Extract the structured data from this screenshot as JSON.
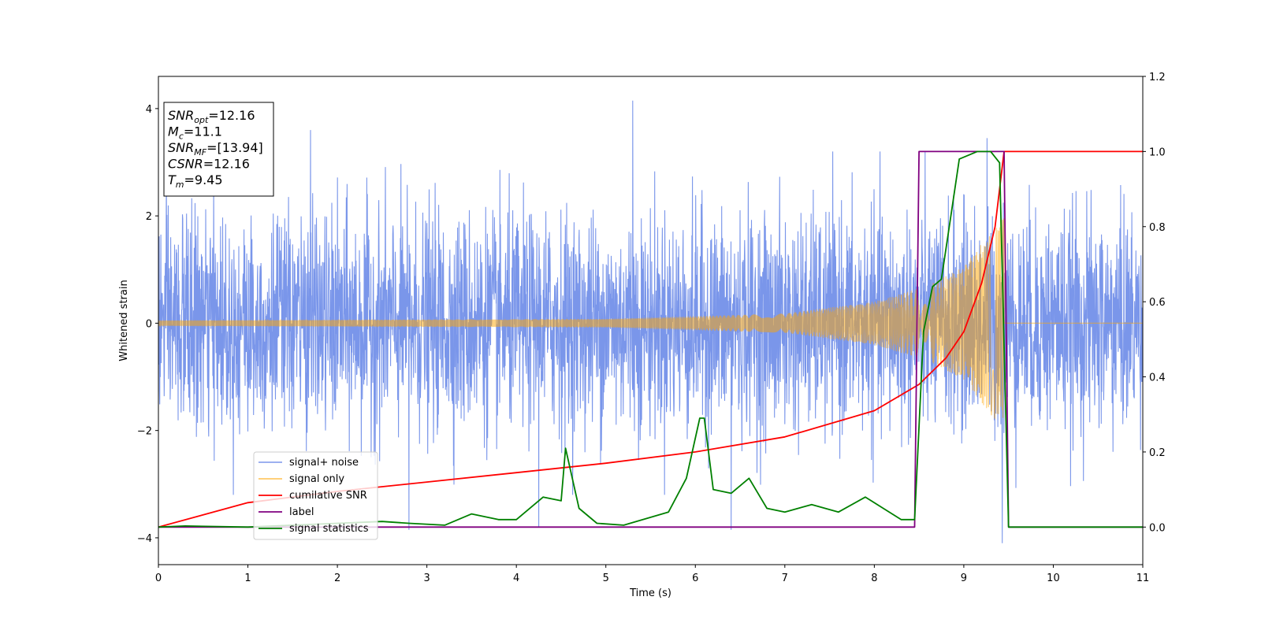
{
  "chart_data": {
    "type": "line",
    "xlabel": "Time (s)",
    "ylabel": "Whitened strain",
    "xlim": [
      0,
      11
    ],
    "ylim_left": [
      -4.5,
      4.6
    ],
    "ylim_right": [
      -0.1,
      1.2
    ],
    "x_ticks": [
      "0",
      "1",
      "2",
      "3",
      "4",
      "5",
      "6",
      "7",
      "8",
      "9",
      "10",
      "11"
    ],
    "y_ticks_left": [
      "4",
      "2",
      "0",
      "−2",
      "−4"
    ],
    "y_ticks_right": [
      "1.2",
      "1.0",
      "0.8",
      "0.6",
      "0.4",
      "0.2",
      "0.0"
    ],
    "annotation": {
      "lines": [
        {
          "base": "SNR",
          "sub": "opt",
          "value": "=12.16"
        },
        {
          "base": "M",
          "sub": "c",
          "value": "=11.1"
        },
        {
          "base": "SNR",
          "sub": "MF",
          "value": "=[13.94]"
        },
        {
          "base": "CSNR",
          "sub": "",
          "value": "=12.16"
        },
        {
          "base": "T",
          "sub": "m",
          "value": "=9.45"
        }
      ]
    },
    "legend": {
      "position": "lower-left",
      "entries": [
        {
          "label": "signal+ noise",
          "color": "#4169e1"
        },
        {
          "label": "signal only",
          "color": "#ffa500"
        },
        {
          "label": "cumilative SNR",
          "color": "#ff0000"
        },
        {
          "label": "label",
          "color": "#800080"
        },
        {
          "label": "signal statistics",
          "color": "#008000"
        }
      ]
    },
    "series": [
      {
        "name": "signal+ noise",
        "axis": "left",
        "color": "#4169e1",
        "opacity": 0.7,
        "kind": "noise",
        "noise_sigma": 1.0,
        "noise_extremes": [
          4.2,
          -4.1
        ],
        "spikes": [
          [
            5.3,
            4.15
          ],
          [
            9.43,
            -4.1
          ],
          [
            1.7,
            3.6
          ],
          [
            9.26,
            3.45
          ],
          [
            2.8,
            -3.85
          ],
          [
            6.4,
            -3.85
          ],
          [
            4.25,
            -3.8
          ]
        ]
      },
      {
        "name": "signal only",
        "axis": "left",
        "color": "#ffa500",
        "opacity": 0.5,
        "kind": "chirp",
        "merger_time": 9.45,
        "envelope": [
          [
            0,
            0.05
          ],
          [
            5,
            0.08
          ],
          [
            7,
            0.18
          ],
          [
            8,
            0.4
          ],
          [
            8.6,
            0.7
          ],
          [
            9.0,
            1.05
          ],
          [
            9.3,
            1.7
          ],
          [
            9.45,
            2.0
          ]
        ]
      },
      {
        "name": "cumilative SNR",
        "axis": "right",
        "color": "#ff0000",
        "x": [
          0,
          1,
          2,
          3,
          4,
          5,
          6,
          7,
          8,
          8.5,
          8.8,
          9.0,
          9.2,
          9.35,
          9.45,
          11
        ],
        "y": [
          0.0,
          0.065,
          0.095,
          0.12,
          0.145,
          0.17,
          0.2,
          0.24,
          0.31,
          0.38,
          0.45,
          0.52,
          0.65,
          0.8,
          1.0,
          1.0
        ]
      },
      {
        "name": "label",
        "axis": "right",
        "color": "#800080",
        "x": [
          0,
          8.45,
          8.5,
          9.45,
          9.5,
          11
        ],
        "y": [
          0,
          0,
          1,
          1,
          0,
          0
        ]
      },
      {
        "name": "signal statistics",
        "axis": "right",
        "color": "#008000",
        "x": [
          0,
          0.3,
          1.0,
          2.0,
          2.5,
          2.8,
          3.2,
          3.5,
          3.8,
          4.0,
          4.2,
          4.3,
          4.5,
          4.55,
          4.7,
          4.9,
          5.2,
          5.7,
          5.9,
          6.05,
          6.1,
          6.2,
          6.4,
          6.6,
          6.8,
          7.0,
          7.3,
          7.6,
          7.9,
          8.1,
          8.3,
          8.45,
          8.55,
          8.65,
          8.75,
          8.85,
          8.95,
          9.05,
          9.15,
          9.3,
          9.4,
          9.5,
          10.0,
          11.0
        ],
        "y": [
          0.0,
          0.003,
          0.0,
          0.01,
          0.015,
          0.01,
          0.005,
          0.035,
          0.02,
          0.02,
          0.06,
          0.08,
          0.07,
          0.21,
          0.05,
          0.01,
          0.005,
          0.04,
          0.13,
          0.29,
          0.29,
          0.1,
          0.09,
          0.13,
          0.05,
          0.04,
          0.06,
          0.04,
          0.08,
          0.05,
          0.02,
          0.02,
          0.52,
          0.64,
          0.66,
          0.82,
          0.98,
          0.99,
          1.0,
          1.0,
          0.97,
          0.0,
          0.0,
          0.0
        ]
      }
    ]
  }
}
